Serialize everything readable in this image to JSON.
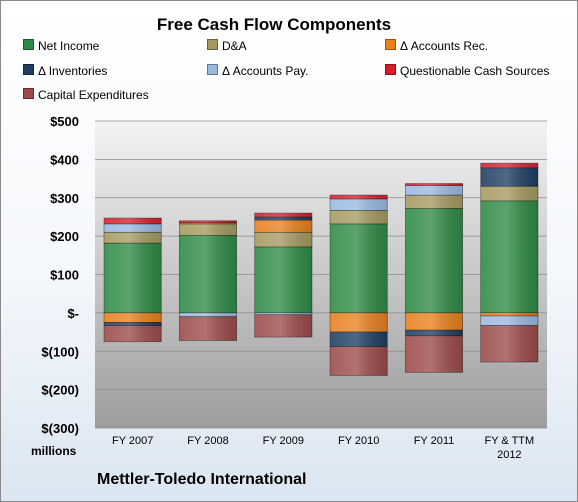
{
  "chart_data": {
    "type": "bar",
    "stacked": true,
    "title": "Free Cash Flow Components",
    "units_label": "millions",
    "subtitle": "Mettler-Toledo International",
    "categories": [
      "FY 2007",
      "FY 2008",
      "FY 2009",
      "FY 2010",
      "FY 2011",
      "FY & TTM 2012"
    ],
    "ylim": [
      -300,
      500
    ],
    "yticks": [
      500,
      400,
      300,
      200,
      100,
      0,
      -100,
      -200,
      -300
    ],
    "ytick_labels": [
      "$500",
      "$400",
      "$300",
      "$200",
      "$100",
      "$-",
      "$(100)",
      "$(200)",
      "$(300)"
    ],
    "grid": true,
    "legend_position": "top",
    "series": [
      {
        "name": "Net Income",
        "color": "#2f8a46",
        "values": [
          182,
          202,
          172,
          232,
          272,
          292
        ]
      },
      {
        "name": "D&A",
        "color": "#a49a60",
        "values": [
          28,
          30,
          38,
          35,
          35,
          38
        ]
      },
      {
        "name": "Δ Accounts Rec.",
        "color": "#e8801e",
        "values": [
          -25,
          3,
          32,
          -50,
          -45,
          -8
        ]
      },
      {
        "name": "Δ Inventories",
        "color": "#1f3d63",
        "values": [
          -8,
          0,
          8,
          -38,
          -15,
          48
        ]
      },
      {
        "name": "Δ Accounts Pay.",
        "color": "#9ab9e0",
        "values": [
          22,
          -10,
          -5,
          30,
          25,
          -25
        ]
      },
      {
        "name": "Questionable Cash Sources",
        "color": "#d81e2c",
        "values": [
          15,
          5,
          10,
          10,
          5,
          12
        ]
      },
      {
        "name": "Capital Expenditures",
        "color": "#9c4a4a",
        "values": [
          -42,
          -62,
          -58,
          -75,
          -95,
          -95
        ]
      }
    ]
  }
}
